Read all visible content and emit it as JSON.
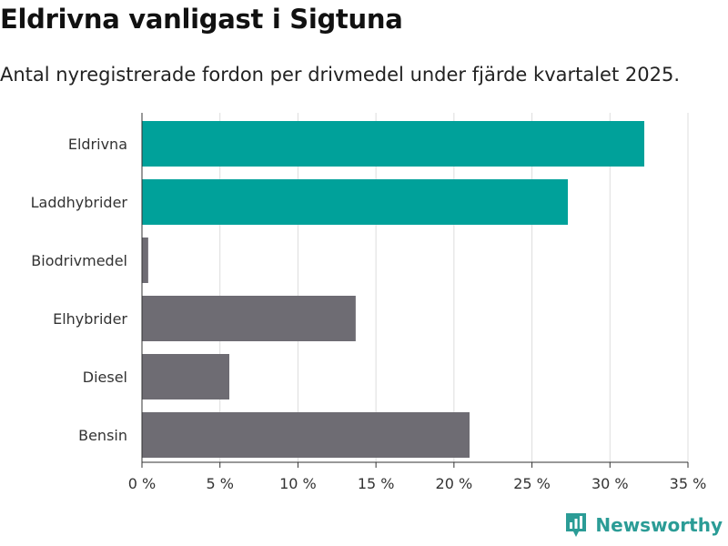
{
  "header": {
    "title": "Eldrivna vanligast i Sigtuna",
    "subtitle": "Antal nyregistrerade fordon per drivmedel under fjärde kvartalet 2025."
  },
  "chart_data": {
    "type": "bar",
    "orientation": "horizontal",
    "categories": [
      "Eldrivna",
      "Laddhybrider",
      "Biodrivmedel",
      "Elhybrider",
      "Diesel",
      "Bensin"
    ],
    "values": [
      32.2,
      27.3,
      0.4,
      13.7,
      5.6,
      21.0
    ],
    "unit": "%",
    "xlim": [
      0,
      35
    ],
    "ticks": [
      0,
      5,
      10,
      15,
      20,
      25,
      30,
      35
    ],
    "tick_labels": [
      "0 %",
      "5 %",
      "10 %",
      "15 %",
      "20 %",
      "25 %",
      "30 %",
      "35 %"
    ],
    "grid": true,
    "colors": {
      "highlight": "#00a19a",
      "default": "#6e6c73",
      "grid": "#dddddd",
      "axis": "#333333"
    },
    "highlighted": [
      "Eldrivna",
      "Laddhybrider"
    ]
  },
  "brand": {
    "name": "Newsworthy",
    "icon": "newsworthy-logo-icon",
    "color": "#2b9c96"
  }
}
